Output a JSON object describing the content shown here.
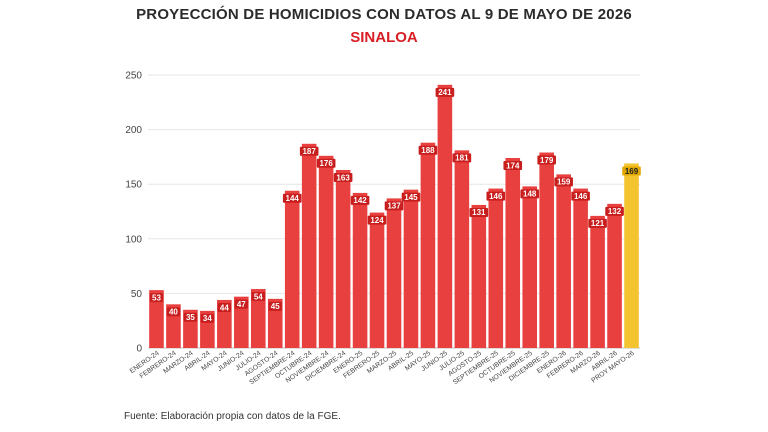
{
  "header": {
    "title": "PROYECCIÓN DE HOMICIDIOS CON DATOS AL 9 DE MAYO DE 2026",
    "subtitle": "SINALOA"
  },
  "footer": {
    "source": "Fuente: Elaboración propia con datos de la FGE."
  },
  "colors": {
    "bar": "#e8403f",
    "highlight": "#f4c430",
    "subtitle": "#d91f26",
    "grid": "#e6e6e6",
    "label_bg": "#c81e1e",
    "label_text": "#ffffff",
    "highlight_label_bg": "#e0a800",
    "highlight_label_text": "#222222"
  },
  "chart_data": {
    "type": "bar",
    "title": "PROYECCIÓN DE HOMICIDIOS CON DATOS AL 9 DE MAYO DE 2026",
    "subtitle": "SINALOA",
    "xlabel": "",
    "ylabel": "",
    "ylim": [
      0,
      250
    ],
    "yticks": [
      0,
      50,
      100,
      150,
      200,
      250
    ],
    "grid": true,
    "legend": "none",
    "categories": [
      "ENERO-24",
      "FEBRERO-24",
      "MARZO-24",
      "ABRIL-24",
      "MAYO-24",
      "JUNIO-24",
      "JULIO-24",
      "AGOSTO-24",
      "SEPTIEMBRE-24",
      "OCTUBRE-24",
      "NOVIEMBRE-24",
      "DICIEMBRE-24",
      "ENERO-25",
      "FEBRERO-25",
      "MARZO-25",
      "ABRIL-25",
      "MAYO-25",
      "JUNIO-25",
      "JULIO-25",
      "AGOSTO-25",
      "SEPTIEMBRE-25",
      "OCTUBRE-25",
      "NOVIEMBRE-25",
      "DICIEMBRE-25",
      "ENERO-26",
      "FEBRERO-26",
      "MARZO-26",
      "ABRIL-26",
      "PROY MAYO-26"
    ],
    "values": [
      53,
      40,
      35,
      34,
      44,
      47,
      54,
      45,
      144,
      187,
      176,
      163,
      142,
      124,
      137,
      145,
      188,
      241,
      181,
      131,
      146,
      174,
      148,
      179,
      159,
      146,
      121,
      132,
      169
    ],
    "highlight_index": 28
  }
}
